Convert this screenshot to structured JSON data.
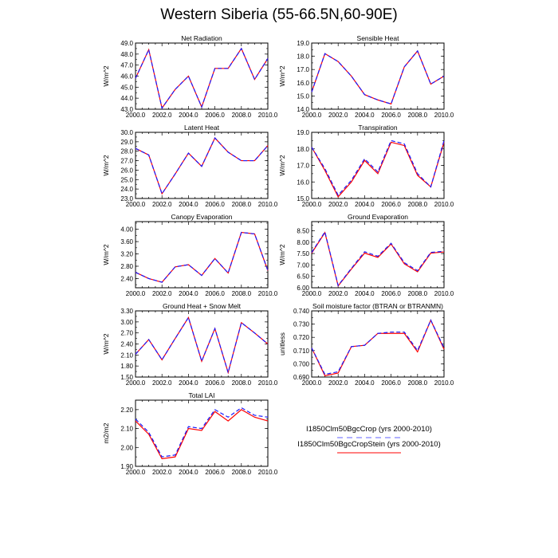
{
  "title": "Western Siberia (55-66.5N,60-90E)",
  "legend": {
    "placement": "bottom-right",
    "entries": [
      {
        "label": "I1850Clm50BgcCrop (yrs 2000-2010)",
        "color": "#1a1aff",
        "dash": "dashed"
      },
      {
        "label": "I1850Clm50BgcCropStein (yrs 2000-2010)",
        "color": "#ff0000",
        "dash": "solid"
      }
    ]
  },
  "chart_data": [
    {
      "type": "line",
      "title": "Net Radiation",
      "xlabel": "",
      "ylabel": "W/m^2",
      "xlim": [
        2000,
        2010
      ],
      "ylim": [
        43,
        49
      ],
      "xticks": [
        "2000.0",
        "2002.0",
        "2004.0",
        "2006.0",
        "2008.0",
        "2010.0"
      ],
      "yticks": [
        "43.0",
        "44.0",
        "45.0",
        "46.0",
        "47.0",
        "48.0",
        "49.0"
      ],
      "x": [
        2000,
        2001,
        2002,
        2003,
        2004,
        2005,
        2006,
        2007,
        2008,
        2009,
        2010
      ],
      "series": [
        {
          "name": "I1850Clm50BgcCrop (yrs 2000-2010)",
          "values": [
            45.8,
            48.4,
            43.1,
            44.8,
            46.0,
            43.2,
            46.7,
            46.7,
            48.5,
            45.7,
            47.6
          ]
        },
        {
          "name": "I1850Clm50BgcCropStein (yrs 2000-2010)",
          "values": [
            45.8,
            48.4,
            43.1,
            44.8,
            46.0,
            43.2,
            46.7,
            46.7,
            48.5,
            45.7,
            47.6
          ]
        }
      ]
    },
    {
      "type": "line",
      "title": "Sensible Heat",
      "xlabel": "",
      "ylabel": "W/m^2",
      "xlim": [
        2000,
        2010
      ],
      "ylim": [
        14,
        19
      ],
      "xticks": [
        "2000.0",
        "2002.0",
        "2004.0",
        "2006.0",
        "2008.0",
        "2010.0"
      ],
      "yticks": [
        "14.0",
        "15.0",
        "16.0",
        "17.0",
        "18.0",
        "19.0"
      ],
      "x": [
        2000,
        2001,
        2002,
        2003,
        2004,
        2005,
        2006,
        2007,
        2008,
        2009,
        2010
      ],
      "series": [
        {
          "name": "I1850Clm50BgcCrop (yrs 2000-2010)",
          "values": [
            15.3,
            18.2,
            17.6,
            16.5,
            15.1,
            14.7,
            14.4,
            17.2,
            18.4,
            15.9,
            16.5
          ]
        },
        {
          "name": "I1850Clm50BgcCropStein (yrs 2000-2010)",
          "values": [
            15.3,
            18.2,
            17.6,
            16.5,
            15.1,
            14.7,
            14.4,
            17.2,
            18.4,
            15.9,
            16.5
          ]
        }
      ]
    },
    {
      "type": "line",
      "title": "Latent Heat",
      "xlabel": "",
      "ylabel": "W/m^2",
      "xlim": [
        2000,
        2010
      ],
      "ylim": [
        23,
        30
      ],
      "xticks": [
        "2000.0",
        "2002.0",
        "2004.0",
        "2006.0",
        "2008.0",
        "2010.0"
      ],
      "yticks": [
        "23.0",
        "24.0",
        "25.0",
        "26.0",
        "27.0",
        "28.0",
        "29.0",
        "30.0"
      ],
      "x": [
        2000,
        2001,
        2002,
        2003,
        2004,
        2005,
        2006,
        2007,
        2008,
        2009,
        2010
      ],
      "series": [
        {
          "name": "I1850Clm50BgcCrop (yrs 2000-2010)",
          "values": [
            28.3,
            27.6,
            23.5,
            25.6,
            27.8,
            26.4,
            29.4,
            27.9,
            27.0,
            27.0,
            28.6
          ]
        },
        {
          "name": "I1850Clm50BgcCropStein (yrs 2000-2010)",
          "values": [
            28.3,
            27.6,
            23.5,
            25.6,
            27.8,
            26.4,
            29.4,
            27.9,
            27.0,
            27.0,
            28.6
          ]
        }
      ]
    },
    {
      "type": "line",
      "title": "Transpiration",
      "xlabel": "",
      "ylabel": "W/m^2",
      "xlim": [
        2000,
        2010
      ],
      "ylim": [
        15,
        19
      ],
      "xticks": [
        "2000.0",
        "2002.0",
        "2004.0",
        "2006.0",
        "2008.0",
        "2010.0"
      ],
      "yticks": [
        "15.0",
        "16.0",
        "17.0",
        "18.0",
        "19.0"
      ],
      "x": [
        2000,
        2001,
        2002,
        2003,
        2004,
        2005,
        2006,
        2007,
        2008,
        2009,
        2010
      ],
      "series": [
        {
          "name": "I1850Clm50BgcCrop (yrs 2000-2010)",
          "values": [
            18.1,
            16.8,
            15.2,
            16.1,
            17.4,
            16.6,
            18.5,
            18.3,
            16.5,
            15.7,
            18.5
          ]
        },
        {
          "name": "I1850Clm50BgcCropStein (yrs 2000-2010)",
          "values": [
            18.1,
            16.7,
            15.1,
            16.0,
            17.3,
            16.5,
            18.4,
            18.2,
            16.4,
            15.7,
            18.4
          ]
        }
      ]
    },
    {
      "type": "line",
      "title": "Canopy Evaporation",
      "xlabel": "",
      "ylabel": "W/m^2",
      "xlim": [
        2000,
        2010
      ],
      "ylim": [
        2.1,
        4.25
      ],
      "xticks": [
        "2000.0",
        "2002.0",
        "2004.0",
        "2006.0",
        "2008.0",
        "2010.0"
      ],
      "yticks": [
        "2.40",
        "2.80",
        "3.20",
        "3.60",
        "4.00"
      ],
      "x": [
        2000,
        2001,
        2002,
        2003,
        2004,
        2005,
        2006,
        2007,
        2008,
        2009,
        2010
      ],
      "series": [
        {
          "name": "I1850Clm50BgcCrop (yrs 2000-2010)",
          "values": [
            2.6,
            2.4,
            2.28,
            2.78,
            2.85,
            2.5,
            3.05,
            2.58,
            3.9,
            3.85,
            2.66
          ]
        },
        {
          "name": "I1850Clm50BgcCropStein (yrs 2000-2010)",
          "values": [
            2.6,
            2.4,
            2.28,
            2.78,
            2.85,
            2.5,
            3.05,
            2.58,
            3.9,
            3.85,
            2.66
          ]
        }
      ]
    },
    {
      "type": "line",
      "title": "Ground Evaporation",
      "xlabel": "",
      "ylabel": "W/m^2",
      "xlim": [
        2000,
        2010
      ],
      "ylim": [
        6.0,
        8.9
      ],
      "xticks": [
        "2000.0",
        "2002.0",
        "2004.0",
        "2006.0",
        "2008.0",
        "2010.0"
      ],
      "yticks": [
        "6.00",
        "6.50",
        "7.00",
        "7.50",
        "8.00",
        "8.50"
      ],
      "x": [
        2000,
        2001,
        2002,
        2003,
        2004,
        2005,
        2006,
        2007,
        2008,
        2009,
        2010
      ],
      "series": [
        {
          "name": "I1850Clm50BgcCrop (yrs 2000-2010)",
          "values": [
            7.55,
            8.45,
            6.1,
            6.85,
            7.58,
            7.38,
            7.95,
            7.1,
            6.75,
            7.55,
            7.6
          ]
        },
        {
          "name": "I1850Clm50BgcCropStein (yrs 2000-2010)",
          "values": [
            7.52,
            8.42,
            6.08,
            6.82,
            7.52,
            7.33,
            7.92,
            7.05,
            6.7,
            7.52,
            7.57
          ]
        }
      ]
    },
    {
      "type": "line",
      "title": "Ground Heat + Snow Melt",
      "xlabel": "",
      "ylabel": "W/m^2",
      "xlim": [
        2000,
        2010
      ],
      "ylim": [
        1.5,
        3.3
      ],
      "xticks": [
        "2000.0",
        "2002.0",
        "2004.0",
        "2006.0",
        "2008.0",
        "2010.0"
      ],
      "yticks": [
        "1.50",
        "1.80",
        "2.10",
        "2.40",
        "2.70",
        "3.00",
        "3.30"
      ],
      "x": [
        2000,
        2001,
        2002,
        2003,
        2004,
        2005,
        2006,
        2007,
        2008,
        2009,
        2010
      ],
      "series": [
        {
          "name": "I1850Clm50BgcCrop (yrs 2000-2010)",
          "values": [
            2.12,
            2.52,
            1.97,
            2.55,
            3.12,
            1.93,
            2.82,
            1.62,
            2.98,
            2.7,
            2.4
          ]
        },
        {
          "name": "I1850Clm50BgcCropStein (yrs 2000-2010)",
          "values": [
            2.12,
            2.52,
            1.97,
            2.55,
            3.12,
            1.93,
            2.82,
            1.62,
            2.98,
            2.7,
            2.4
          ]
        }
      ]
    },
    {
      "type": "line",
      "title": "Soil moisture factor (BTRAN or BTRANMN)",
      "xlabel": "",
      "ylabel": "unitless",
      "xlim": [
        2000,
        2010
      ],
      "ylim": [
        0.69,
        0.74
      ],
      "xticks": [
        "2000.0",
        "2002.0",
        "2004.0",
        "2006.0",
        "2008.0",
        "2010.0"
      ],
      "yticks": [
        "0.690",
        "0.700",
        "0.710",
        "0.720",
        "0.730",
        "0.740"
      ],
      "x": [
        2000,
        2001,
        2002,
        2003,
        2004,
        2005,
        2006,
        2007,
        2008,
        2009,
        2010
      ],
      "series": [
        {
          "name": "I1850Clm50BgcCrop (yrs 2000-2010)",
          "values": [
            0.712,
            0.692,
            0.694,
            0.713,
            0.714,
            0.723,
            0.724,
            0.724,
            0.71,
            0.733,
            0.712
          ]
        },
        {
          "name": "I1850Clm50BgcCropStein (yrs 2000-2010)",
          "values": [
            0.712,
            0.691,
            0.693,
            0.713,
            0.714,
            0.723,
            0.723,
            0.723,
            0.709,
            0.733,
            0.711
          ]
        }
      ]
    },
    {
      "type": "line",
      "title": "Total LAI",
      "xlabel": "",
      "ylabel": "m2/m2",
      "xlim": [
        2000,
        2010
      ],
      "ylim": [
        1.9,
        2.25
      ],
      "xticks": [
        "2000.0",
        "2002.0",
        "2004.0",
        "2006.0",
        "2008.0",
        "2010.0"
      ],
      "yticks": [
        "1.90",
        "2.00",
        "2.10",
        "2.20"
      ],
      "x": [
        2000,
        2001,
        2002,
        2003,
        2004,
        2005,
        2006,
        2007,
        2008,
        2009,
        2010
      ],
      "series": [
        {
          "name": "I1850Clm50BgcCrop (yrs 2000-2010)",
          "values": [
            2.15,
            2.08,
            1.95,
            1.96,
            2.11,
            2.1,
            2.2,
            2.16,
            2.21,
            2.17,
            2.16
          ]
        },
        {
          "name": "I1850Clm50BgcCropStein (yrs 2000-2010)",
          "values": [
            2.14,
            2.07,
            1.94,
            1.95,
            2.1,
            2.09,
            2.19,
            2.14,
            2.2,
            2.16,
            2.14
          ]
        }
      ]
    }
  ]
}
